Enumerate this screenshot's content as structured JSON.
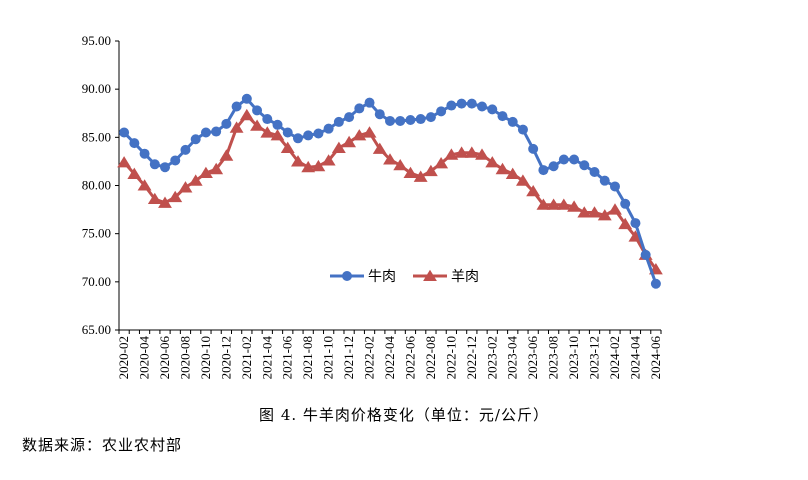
{
  "caption": "图 4.  牛羊肉价格变化（单位：元/公斤）",
  "source": "数据来源：农业农村部",
  "chart_data": {
    "type": "line",
    "x": [
      "2020-02",
      "2020-03",
      "2020-04",
      "2020-05",
      "2020-06",
      "2020-07",
      "2020-08",
      "2020-09",
      "2020-10",
      "2020-11",
      "2020-12",
      "2021-01",
      "2021-02",
      "2021-03",
      "2021-04",
      "2021-05",
      "2021-06",
      "2021-07",
      "2021-08",
      "2021-09",
      "2021-10",
      "2021-11",
      "2021-12",
      "2022-01",
      "2022-02",
      "2022-03",
      "2022-04",
      "2022-05",
      "2022-06",
      "2022-07",
      "2022-08",
      "2022-09",
      "2022-10",
      "2022-11",
      "2022-12",
      "2023-01",
      "2023-02",
      "2023-03",
      "2023-04",
      "2023-05",
      "2023-06",
      "2023-07",
      "2023-08",
      "2023-09",
      "2023-10",
      "2023-11",
      "2023-12",
      "2024-01",
      "2024-02",
      "2024-03",
      "2024-04",
      "2024-05",
      "2024-06"
    ],
    "x_tick_labels": [
      "2020-02",
      "2020-04",
      "2020-06",
      "2020-08",
      "2020-10",
      "2020-12",
      "2021-02",
      "2021-04",
      "2021-06",
      "2021-08",
      "2021-10",
      "2021-12",
      "2022-02",
      "2022-04",
      "2022-06",
      "2022-08",
      "2022-10",
      "2022-12",
      "2023-02",
      "2023-04",
      "2023-06",
      "2023-08",
      "2023-10",
      "2023-12",
      "2024-02",
      "2024-04",
      "2024-06"
    ],
    "y_tick_labels": [
      "65.00",
      "70.00",
      "75.00",
      "80.00",
      "85.00",
      "90.00",
      "95.00"
    ],
    "ylim": [
      65,
      95
    ],
    "series": [
      {
        "name": "牛肉",
        "color": "#4472C4",
        "marker": "circle",
        "values": [
          85.5,
          84.4,
          83.3,
          82.2,
          81.9,
          82.6,
          83.7,
          84.8,
          85.5,
          85.6,
          86.4,
          88.2,
          89.0,
          87.8,
          86.9,
          86.3,
          85.5,
          84.9,
          85.2,
          85.4,
          85.9,
          86.6,
          87.1,
          88.0,
          88.6,
          87.4,
          86.7,
          86.7,
          86.8,
          86.9,
          87.1,
          87.7,
          88.3,
          88.5,
          88.5,
          88.2,
          87.9,
          87.2,
          86.6,
          85.8,
          83.8,
          81.6,
          82.0,
          82.7,
          82.7,
          82.1,
          81.4,
          80.5,
          79.9,
          78.1,
          76.1,
          72.8,
          69.8
        ]
      },
      {
        "name": "羊肉",
        "color": "#C0504D",
        "marker": "triangle",
        "values": [
          82.4,
          81.2,
          80.0,
          78.6,
          78.2,
          78.8,
          79.8,
          80.5,
          81.3,
          81.7,
          83.1,
          86.0,
          87.3,
          86.2,
          85.5,
          85.2,
          83.9,
          82.5,
          81.9,
          82.0,
          82.6,
          83.9,
          84.5,
          85.2,
          85.5,
          83.8,
          82.7,
          82.1,
          81.3,
          80.9,
          81.5,
          82.3,
          83.2,
          83.4,
          83.4,
          83.2,
          82.4,
          81.7,
          81.2,
          80.5,
          79.4,
          78.0,
          78.0,
          78.0,
          77.8,
          77.2,
          77.2,
          76.9,
          77.5,
          76.0,
          74.7,
          72.8,
          71.3
        ]
      }
    ],
    "legend_position": "center",
    "grid": false
  }
}
